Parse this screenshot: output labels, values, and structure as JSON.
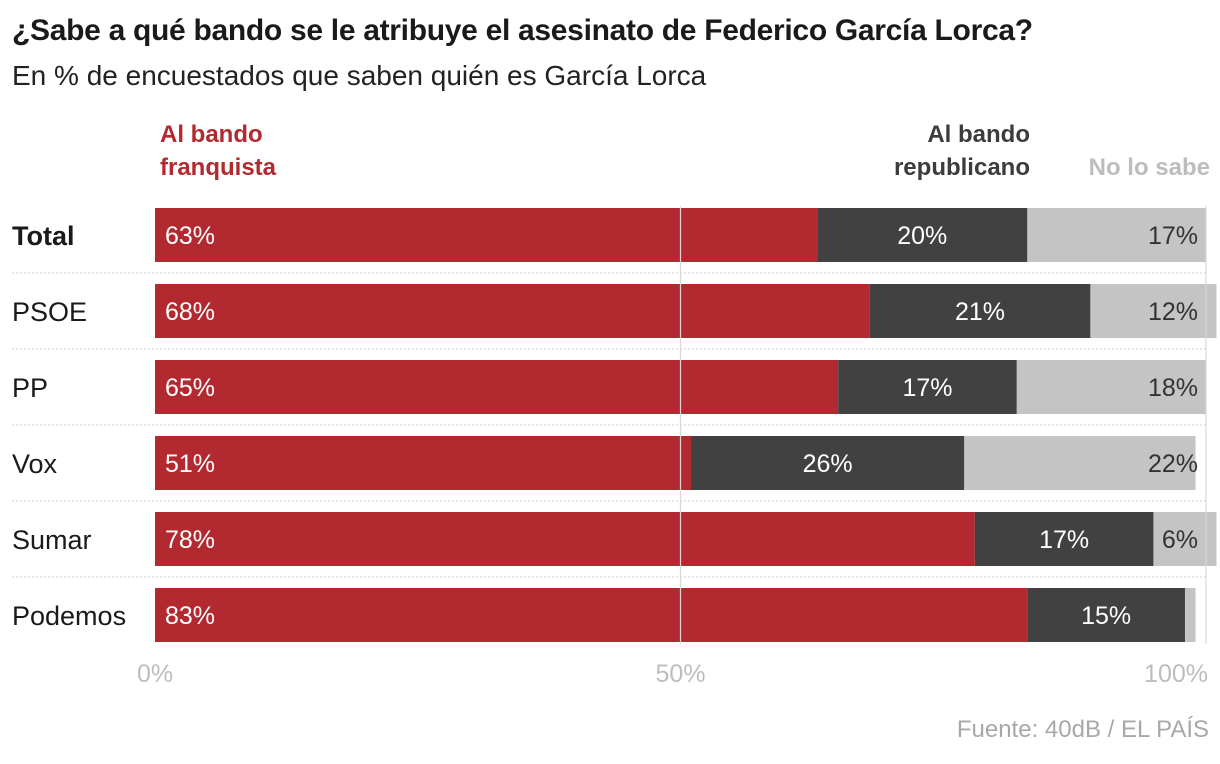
{
  "chart_data": {
    "type": "bar",
    "orientation": "horizontal",
    "stacked": true,
    "title": "¿Sabe a qué bando se le atribuye el asesinato de Federico García Lorca?",
    "subtitle": "En % de encuestados que saben quién es García Lorca",
    "categories": [
      "Total",
      "PSOE",
      "PP",
      "Vox",
      "Sumar",
      "Podemos"
    ],
    "series": [
      {
        "name": "Al bando franquista",
        "color": "#b22a2f",
        "values": [
          63,
          68,
          65,
          51,
          78,
          83
        ]
      },
      {
        "name": "Al bando republicano",
        "color": "#414141",
        "values": [
          20,
          21,
          17,
          26,
          17,
          15
        ]
      },
      {
        "name": "No lo sabe",
        "color": "#c4c4c4",
        "values": [
          17,
          12,
          18,
          22,
          6,
          1
        ]
      }
    ],
    "value_labels": [
      [
        "63%",
        "20%",
        "17%"
      ],
      [
        "68%",
        "21%",
        "12%"
      ],
      [
        "65%",
        "17%",
        "18%"
      ],
      [
        "51%",
        "26%",
        "22%"
      ],
      [
        "78%",
        "17%",
        "6%"
      ],
      [
        "83%",
        "15%",
        ""
      ]
    ],
    "xlim": [
      0,
      100
    ],
    "xticks": [
      0,
      50,
      100
    ],
    "xtick_labels": [
      "0%",
      "50%",
      "100%"
    ],
    "legend_lines": {
      "franquista": [
        "Al bando",
        "franquista"
      ],
      "republicano": [
        "Al bando",
        "republicano"
      ],
      "no_sabe": [
        "No lo sabe"
      ]
    },
    "source": "Fuente: 40dB / EL PAÍS"
  }
}
